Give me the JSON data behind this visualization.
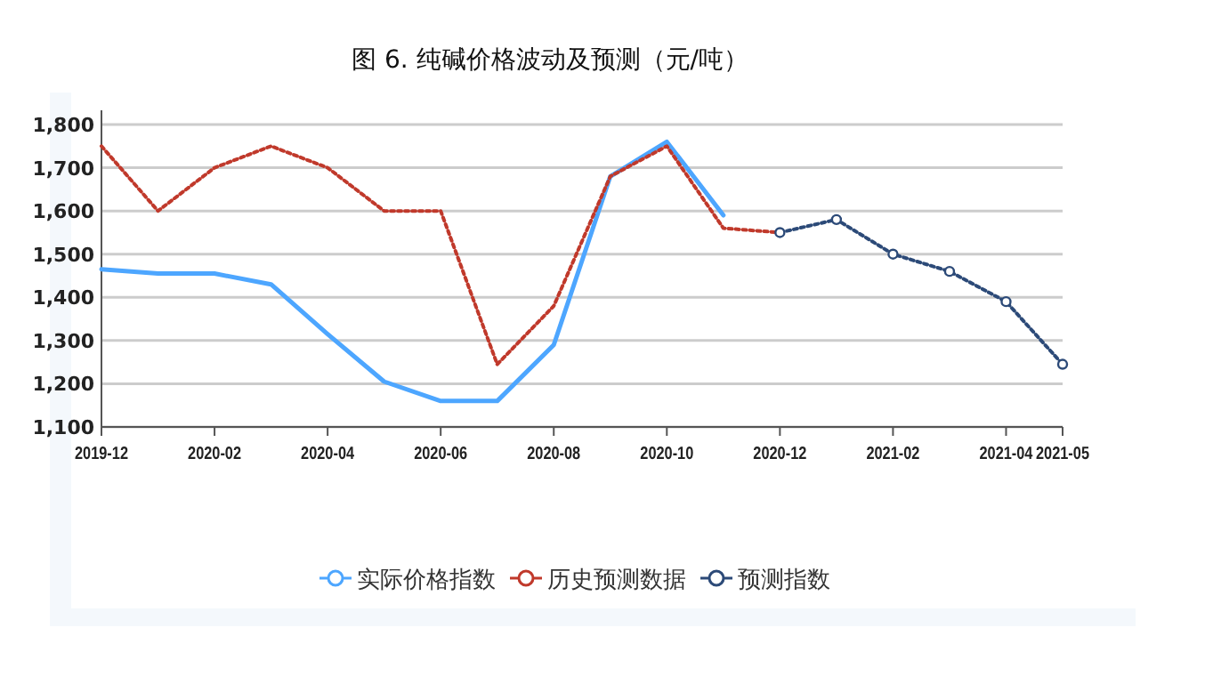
{
  "chart_data": {
    "type": "line",
    "title": "图 6. 纯碱价格波动及预测（元/吨）",
    "x": [
      "2019-12",
      "2020-01",
      "2020-02",
      "2020-03",
      "2020-04",
      "2020-05",
      "2020-06",
      "2020-07",
      "2020-08",
      "2020-09",
      "2020-10",
      "2020-11",
      "2020-12",
      "2021-01",
      "2021-02",
      "2021-03",
      "2021-04",
      "2021-05"
    ],
    "xlim": [
      "2019-12",
      "2021-05"
    ],
    "xticks": [
      "2019-12",
      "2020-02",
      "2020-04",
      "2020-06",
      "2020-08",
      "2020-10",
      "2020-12",
      "2021-02",
      "2021-04",
      "2021-05"
    ],
    "ylim": [
      1100,
      1800
    ],
    "yticks": [
      {
        "value": 1100,
        "label": "1,100"
      },
      {
        "value": 1200,
        "label": "1,200"
      },
      {
        "value": 1300,
        "label": "1,300"
      },
      {
        "value": 1400,
        "label": "1,400"
      },
      {
        "value": 1500,
        "label": "1,500"
      },
      {
        "value": 1600,
        "label": "1,600"
      },
      {
        "value": 1700,
        "label": "1,700"
      },
      {
        "value": 1800,
        "label": "1,800"
      }
    ],
    "grid": "y",
    "legend": "bottom",
    "series": [
      {
        "name": "实际价格指数",
        "color": "#4da6ff",
        "line_style": "solid",
        "marker": "none",
        "values": [
          1465,
          1455,
          1455,
          1430,
          1315,
          1205,
          1160,
          1160,
          1290,
          1680,
          1760,
          1590,
          null,
          null,
          null,
          null,
          null,
          null
        ]
      },
      {
        "name": "历史预测数据",
        "color": "#c0392b",
        "line_style": "dotted",
        "marker": "none",
        "values": [
          1750,
          1600,
          1700,
          1750,
          1700,
          1600,
          1600,
          1245,
          1380,
          1680,
          1750,
          1560,
          1550,
          null,
          null,
          null,
          null,
          null
        ]
      },
      {
        "name": "预测指数",
        "color": "#2c4a78",
        "line_style": "dotted",
        "marker": "circle",
        "values": [
          null,
          null,
          null,
          null,
          null,
          null,
          null,
          null,
          null,
          null,
          null,
          null,
          1550,
          1580,
          1500,
          1460,
          1390,
          1245
        ]
      }
    ]
  }
}
